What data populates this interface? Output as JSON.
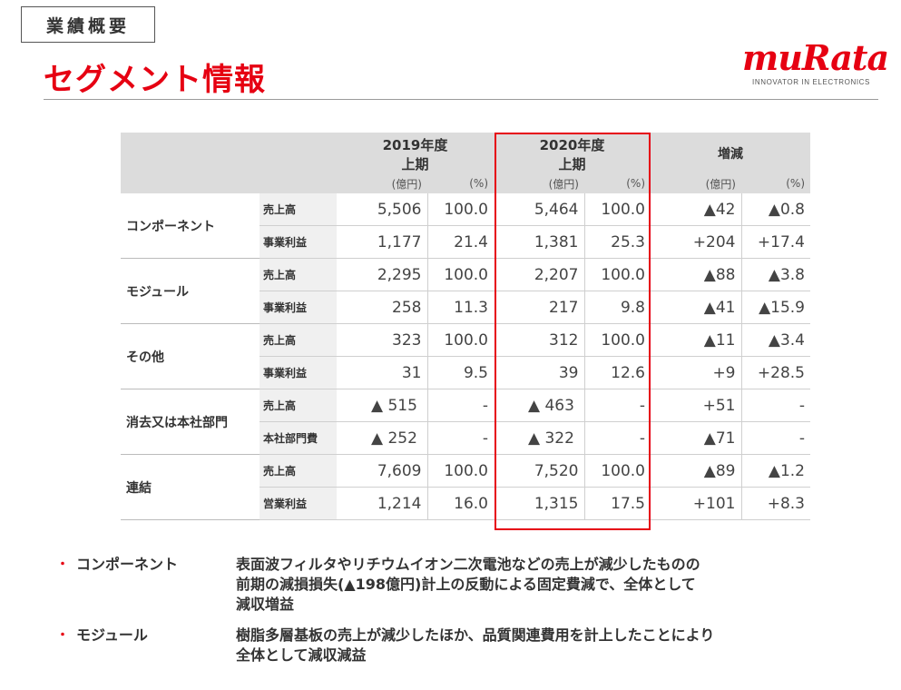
{
  "header": {
    "section_label": "業績概要",
    "page_title": "セグメント情報",
    "logo_text": "muRata",
    "logo_tagline": "INNOVATOR IN ELECTRONICS"
  },
  "table": {
    "columns": {
      "fy2019": {
        "year": "2019年度",
        "half": "上期"
      },
      "fy2020": {
        "year": "2020年度",
        "half": "上期"
      },
      "change": "増減",
      "unit_amount": "(億円)",
      "unit_pct": "(%)"
    },
    "segments": [
      {
        "name": "コンポーネント",
        "rows": [
          {
            "item": "売上高",
            "v2019": "5,506",
            "p2019": "100.0",
            "v2020": "5,464",
            "p2020": "100.0",
            "chg": "▲42",
            "chg_pct": "▲0.8"
          },
          {
            "item": "事業利益",
            "v2019": "1,177",
            "p2019": "21.4",
            "v2020": "1,381",
            "p2020": "25.3",
            "chg": "+204",
            "chg_pct": "+17.4"
          }
        ]
      },
      {
        "name": "モジュール",
        "rows": [
          {
            "item": "売上高",
            "v2019": "2,295",
            "p2019": "100.0",
            "v2020": "2,207",
            "p2020": "100.0",
            "chg": "▲88",
            "chg_pct": "▲3.8"
          },
          {
            "item": "事業利益",
            "v2019": "258",
            "p2019": "11.3",
            "v2020": "217",
            "p2020": "9.8",
            "chg": "▲41",
            "chg_pct": "▲15.9"
          }
        ]
      },
      {
        "name": "その他",
        "rows": [
          {
            "item": "売上高",
            "v2019": "323",
            "p2019": "100.0",
            "v2020": "312",
            "p2020": "100.0",
            "chg": "▲11",
            "chg_pct": "▲3.4"
          },
          {
            "item": "事業利益",
            "v2019": "31",
            "p2019": "9.5",
            "v2020": "39",
            "p2020": "12.6",
            "chg": "+9",
            "chg_pct": "+28.5"
          }
        ]
      },
      {
        "name": "消去又は本社部門",
        "rows": [
          {
            "item": "売上高",
            "v2019": "515",
            "p2019": "-",
            "v2020": "463",
            "p2020": "-",
            "chg": "+51",
            "chg_pct": "-"
          },
          {
            "item": "本社部門費",
            "v2019": "252",
            "p2019": "-",
            "v2020": "322",
            "p2020": "-",
            "chg": "▲71",
            "chg_pct": "-"
          }
        ]
      },
      {
        "name": "連結",
        "rows": [
          {
            "item": "売上高",
            "v2019": "7,609",
            "p2019": "100.0",
            "v2020": "7,520",
            "p2020": "100.0",
            "chg": "▲89",
            "chg_pct": "▲1.2"
          },
          {
            "item": "営業利益",
            "v2019": "1,214",
            "p2019": "16.0",
            "v2020": "1,315",
            "p2020": "17.5",
            "chg": "+101",
            "chg_pct": "+8.3"
          }
        ]
      }
    ],
    "triangle_mark": "▲"
  },
  "notes": [
    {
      "bullet": "・",
      "heading": "コンポーネント",
      "lines": [
        "表面波フィルタやリチウムイオン二次電池などの売上が減少したものの",
        "前期の減損損失(▲198億円)計上の反動による固定費減で、全体として",
        "減収増益"
      ]
    },
    {
      "bullet": "・",
      "heading": "モジュール",
      "lines": [
        "樹脂多層基板の売上が減少したほか、品質関連費用を計上したことにより",
        "全体として減収減益"
      ]
    }
  ],
  "colors": {
    "accent": "#e60012",
    "header_bg": "#dcdcdc",
    "item_bg": "#f0f0f0"
  }
}
